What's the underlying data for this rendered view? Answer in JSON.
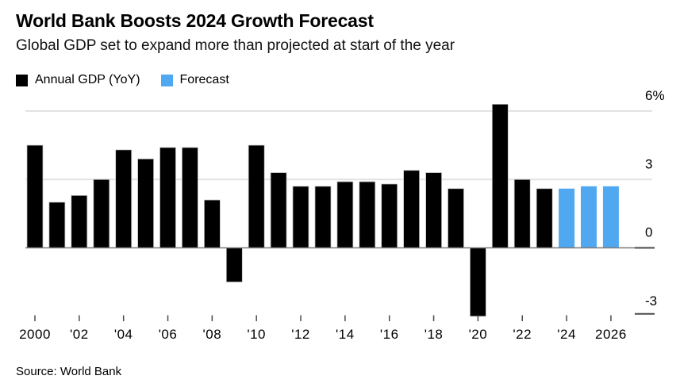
{
  "chart_data": {
    "type": "bar",
    "title": "World Bank Boosts 2024 Growth Forecast",
    "subtitle": "Global GDP set to expand more than projected at start of the year",
    "source": "Source: World Bank",
    "unit": "%",
    "legend": [
      {
        "label": "Annual GDP (YoY)",
        "color": "#000000"
      },
      {
        "label": "Forecast",
        "color": "#50A8F0"
      }
    ],
    "colors": {
      "actual": "#000000",
      "forecast": "#50A8F0",
      "gridline": "#e3e3e3",
      "axis_line": "#7d7d7d",
      "tick": "#4a4a4a",
      "bar_stroke": "#c4c4c4"
    },
    "categories": [
      2000,
      2001,
      2002,
      2003,
      2004,
      2005,
      2006,
      2007,
      2008,
      2009,
      2010,
      2011,
      2012,
      2013,
      2014,
      2015,
      2016,
      2017,
      2018,
      2019,
      2020,
      2021,
      2022,
      2023,
      2024,
      2025,
      2026
    ],
    "values": [
      4.5,
      2.0,
      2.3,
      3.0,
      4.3,
      3.9,
      4.4,
      4.4,
      2.1,
      -1.5,
      4.5,
      3.3,
      2.7,
      2.7,
      2.9,
      2.9,
      2.8,
      3.4,
      3.3,
      2.6,
      -3.0,
      6.3,
      3.0,
      2.6,
      2.6,
      2.7,
      2.7
    ],
    "forecast_years": [
      2024,
      2025,
      2026
    ],
    "y_ticks": [
      {
        "label": "6%",
        "value": 6,
        "style": "grid"
      },
      {
        "label": "3",
        "value": 3,
        "style": "grid"
      },
      {
        "label": "0",
        "value": 0,
        "style": "axis"
      },
      {
        "label": "-3",
        "value": -3,
        "style": "dash"
      }
    ],
    "x_ticks": [
      {
        "label": "2000",
        "year": 2000
      },
      {
        "label": "'02",
        "year": 2002
      },
      {
        "label": "'04",
        "year": 2004
      },
      {
        "label": "'06",
        "year": 2006
      },
      {
        "label": "'08",
        "year": 2008
      },
      {
        "label": "'10",
        "year": 2010
      },
      {
        "label": "'12",
        "year": 2012
      },
      {
        "label": "'14",
        "year": 2014
      },
      {
        "label": "'16",
        "year": 2016
      },
      {
        "label": "'18",
        "year": 2018
      },
      {
        "label": "'20",
        "year": 2020
      },
      {
        "label": "'22",
        "year": 2022
      },
      {
        "label": "'24",
        "year": 2024
      },
      {
        "label": "2026",
        "year": 2026
      }
    ],
    "ylim": [
      -3.3,
      6.5
    ],
    "grid": "horizontal-only",
    "legend_position": "top-left"
  }
}
